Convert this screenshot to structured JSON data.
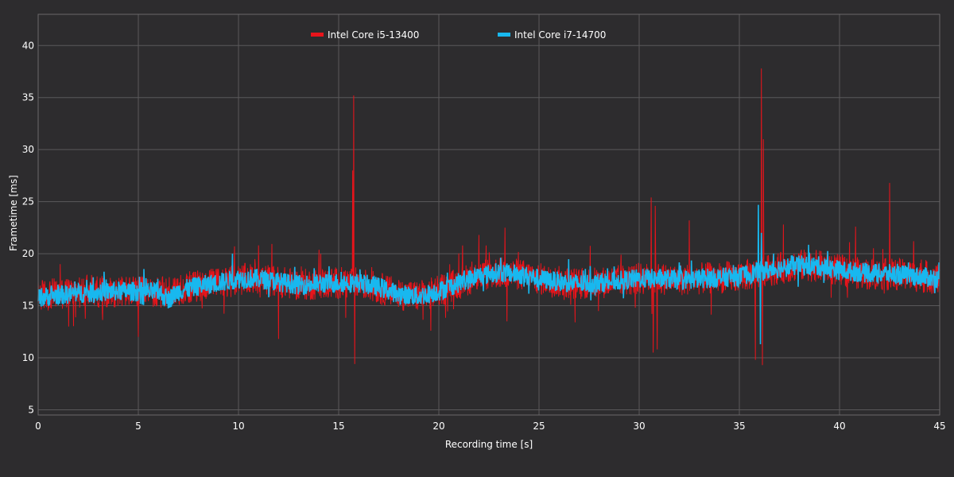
{
  "chart_data": {
    "type": "line",
    "title": "",
    "xlabel": "Recording time [s]",
    "ylabel": "Frametime [ms]",
    "xlim": [
      0,
      45
    ],
    "ylim": [
      4.5,
      43
    ],
    "xticks": [
      0,
      5,
      10,
      15,
      20,
      25,
      30,
      35,
      40,
      45
    ],
    "yticks": [
      5,
      10,
      15,
      20,
      25,
      30,
      35,
      40
    ],
    "grid": true,
    "legend_position": "top-center",
    "series": [
      {
        "name": "Intel Core i5-13400",
        "color": "#e8141b",
        "baseline": [
          [
            0,
            16.0
          ],
          [
            2,
            16.3
          ],
          [
            4,
            16.4
          ],
          [
            6,
            16.2
          ],
          [
            7,
            16.6
          ],
          [
            8,
            16.9
          ],
          [
            9,
            17.2
          ],
          [
            10,
            17.5
          ],
          [
            11,
            17.6
          ],
          [
            12,
            17.3
          ],
          [
            13,
            17.0
          ],
          [
            14,
            17.1
          ],
          [
            15,
            17.2
          ],
          [
            16,
            17.2
          ],
          [
            17,
            16.7
          ],
          [
            18,
            16.1
          ],
          [
            19,
            15.9
          ],
          [
            20,
            16.4
          ],
          [
            21,
            17.2
          ],
          [
            22,
            17.9
          ],
          [
            23,
            18.2
          ],
          [
            24,
            18.0
          ],
          [
            25,
            17.6
          ],
          [
            26,
            17.3
          ],
          [
            27,
            17.1
          ],
          [
            28,
            17.2
          ],
          [
            29,
            17.4
          ],
          [
            30,
            17.6
          ],
          [
            31,
            17.6
          ],
          [
            32,
            17.5
          ],
          [
            33,
            17.6
          ],
          [
            34,
            17.7
          ],
          [
            35,
            17.8
          ],
          [
            36,
            18.2
          ],
          [
            37,
            18.6
          ],
          [
            38,
            18.9
          ],
          [
            39,
            18.8
          ],
          [
            40,
            18.4
          ],
          [
            41,
            18.1
          ],
          [
            42,
            18.0
          ],
          [
            43,
            18.0
          ],
          [
            44,
            17.8
          ],
          [
            45,
            17.6
          ]
        ],
        "spikes": [
          [
            15.75,
            35.2
          ],
          [
            15.8,
            9.4
          ],
          [
            15.7,
            28.0
          ],
          [
            23.3,
            22.5
          ],
          [
            23.4,
            13.5
          ],
          [
            30.6,
            25.4
          ],
          [
            30.7,
            10.5
          ],
          [
            30.8,
            24.6
          ],
          [
            30.9,
            10.8
          ],
          [
            35.8,
            9.8
          ],
          [
            36.1,
            37.8
          ],
          [
            36.15,
            9.3
          ],
          [
            36.2,
            31.0
          ],
          [
            42.5,
            26.8
          ],
          [
            37.2,
            22.8
          ],
          [
            32.5,
            23.2
          ],
          [
            22.0,
            21.8
          ],
          [
            11.0,
            20.8
          ],
          [
            9.8,
            20.7
          ],
          [
            12.0,
            11.8
          ],
          [
            5.0,
            12.0
          ],
          [
            40.8,
            22.6
          ],
          [
            43.7,
            21.2
          ],
          [
            45.0,
            19.6
          ],
          [
            19.6,
            12.6
          ],
          [
            1.1,
            19.0
          ],
          [
            26.8,
            13.4
          ]
        ]
      },
      {
        "name": "Intel Core i7-14700",
        "color": "#18b8ef",
        "baseline": [
          [
            0,
            15.8
          ],
          [
            2,
            16.2
          ],
          [
            4,
            16.4
          ],
          [
            6,
            16.3
          ],
          [
            6.5,
            15.6
          ],
          [
            7,
            16.4
          ],
          [
            8,
            16.9
          ],
          [
            9,
            17.2
          ],
          [
            10,
            17.6
          ],
          [
            11,
            17.6
          ],
          [
            12,
            17.3
          ],
          [
            13,
            17.0
          ],
          [
            14,
            17.1
          ],
          [
            15,
            17.2
          ],
          [
            16,
            17.2
          ],
          [
            17,
            16.8
          ],
          [
            18,
            16.1
          ],
          [
            19,
            15.9
          ],
          [
            20,
            16.4
          ],
          [
            21,
            17.2
          ],
          [
            22,
            17.9
          ],
          [
            23,
            18.2
          ],
          [
            24,
            18.0
          ],
          [
            25,
            17.6
          ],
          [
            26,
            17.3
          ],
          [
            27,
            17.1
          ],
          [
            28,
            17.2
          ],
          [
            29,
            17.4
          ],
          [
            30,
            17.6
          ],
          [
            31,
            17.6
          ],
          [
            32,
            17.5
          ],
          [
            33,
            17.6
          ],
          [
            34,
            17.7
          ],
          [
            35,
            17.8
          ],
          [
            36,
            18.3
          ],
          [
            37,
            18.6
          ],
          [
            38,
            18.9
          ],
          [
            39,
            18.8
          ],
          [
            40,
            18.4
          ],
          [
            41,
            18.2
          ],
          [
            42,
            18.1
          ],
          [
            43,
            18.0
          ],
          [
            44,
            17.8
          ],
          [
            45,
            17.6
          ]
        ],
        "spikes": [
          [
            35.95,
            24.7
          ],
          [
            36.05,
            11.3
          ],
          [
            36.1,
            22.0
          ],
          [
            9.7,
            20.0
          ],
          [
            38.5,
            20.1
          ]
        ]
      }
    ]
  }
}
